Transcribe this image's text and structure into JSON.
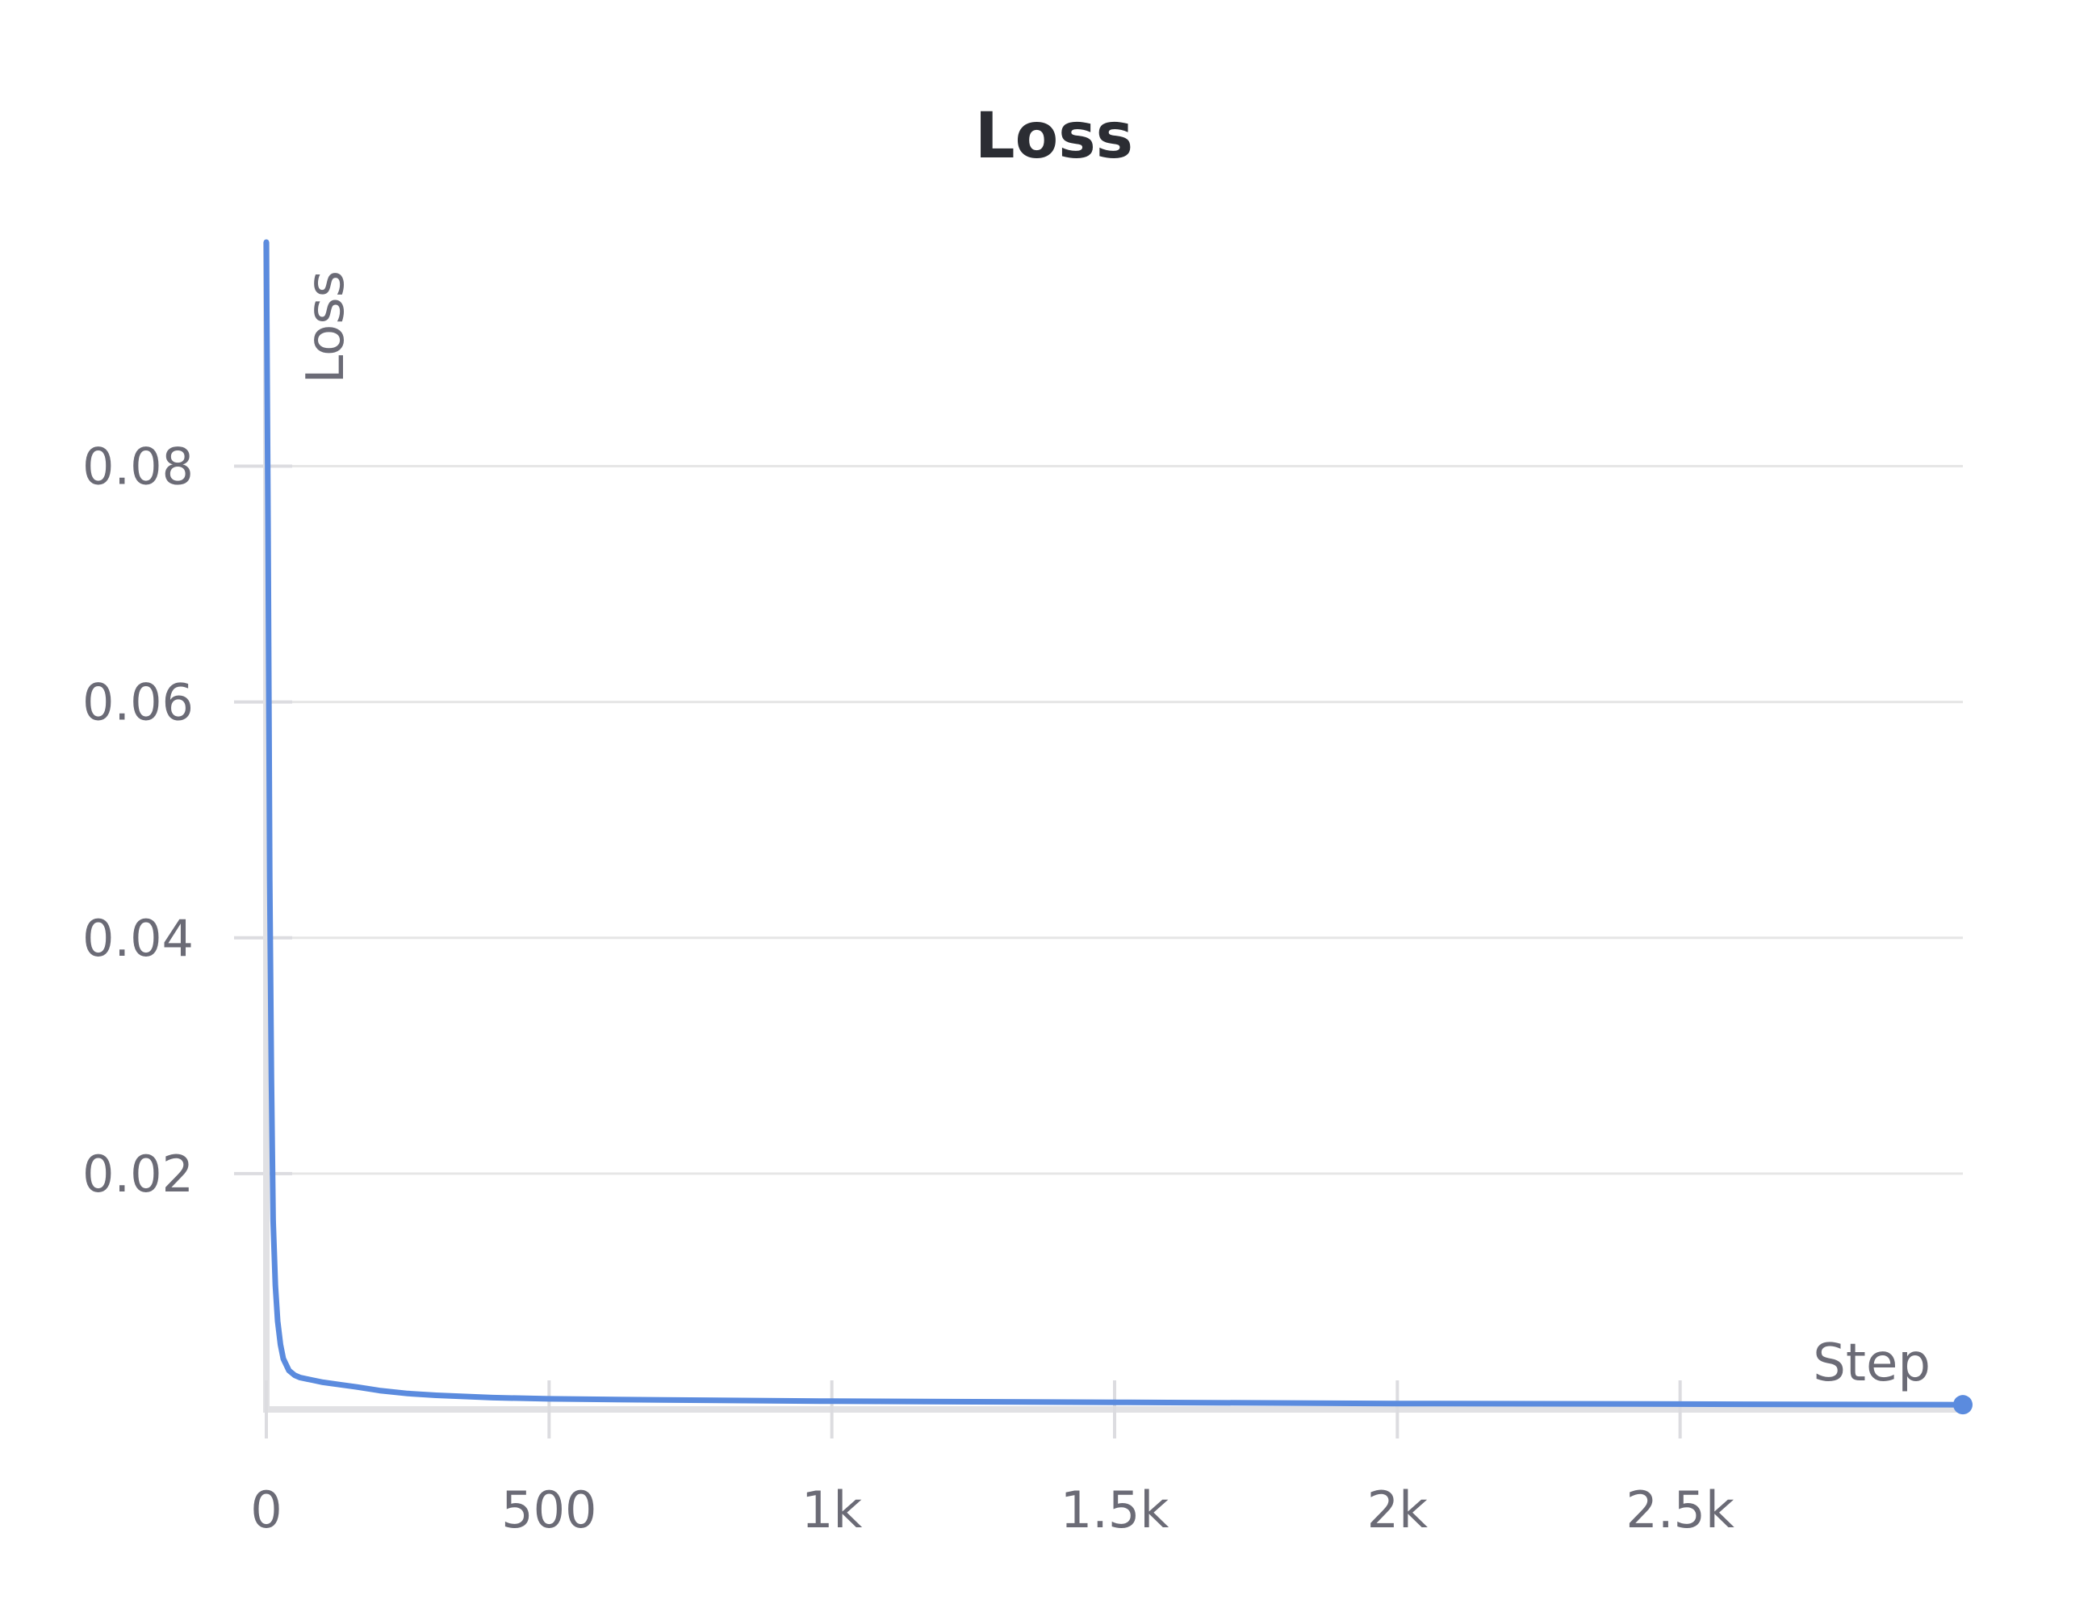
{
  "chart_data": {
    "type": "line",
    "title": "Loss",
    "xlabel": "Step",
    "ylabel": "Loss",
    "xlim": [
      0,
      3000
    ],
    "ylim": [
      0,
      0.099
    ],
    "x_ticks": [
      0,
      500,
      1000,
      1500,
      2000,
      2500
    ],
    "x_tick_labels": [
      "0",
      "500",
      "1k",
      "1.5k",
      "2k",
      "2.5k"
    ],
    "y_ticks": [
      0.02,
      0.04,
      0.06,
      0.08
    ],
    "y_tick_labels": [
      "0.02",
      "0.04",
      "0.06",
      "0.08"
    ],
    "grid": true,
    "series": [
      {
        "color": "#5b8bde",
        "x": [
          0,
          3,
          6,
          9,
          12,
          16,
          20,
          25,
          30,
          40,
          50,
          60,
          80,
          100,
          130,
          160,
          200,
          250,
          300,
          400,
          500,
          700,
          1000,
          1500,
          2000,
          2500,
          3000
        ],
        "y": [
          0.099,
          0.075,
          0.045,
          0.028,
          0.016,
          0.0105,
          0.0075,
          0.0055,
          0.0043,
          0.0033,
          0.0029,
          0.0027,
          0.0025,
          0.0023,
          0.0021,
          0.0019,
          0.0016,
          0.00135,
          0.0012,
          0.001,
          0.0009,
          0.0008,
          0.0007,
          0.0006,
          0.0005,
          0.00045,
          0.0004
        ]
      }
    ]
  }
}
